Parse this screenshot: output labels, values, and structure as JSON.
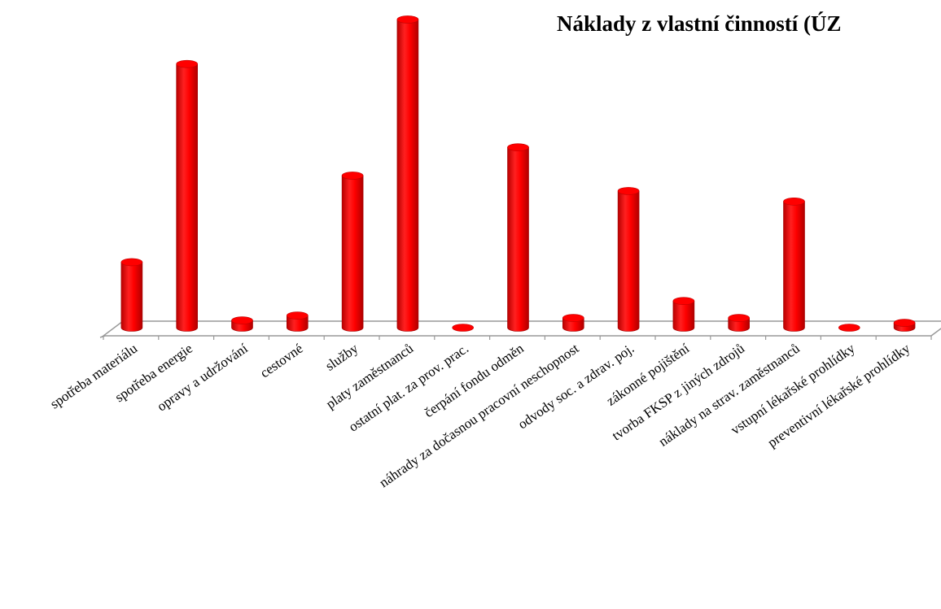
{
  "chart_data": {
    "type": "bar",
    "title": "Náklady z vlastní činností (ÚZ",
    "categories": [
      "spotřeba materiálu",
      "spotřeba energie",
      "opravy a udržování",
      "cestovné",
      "služby",
      "platy zaměstnanců",
      "ostatní plat. za prov. prac.",
      "čerpání fondu odměn",
      "náhrady za dočasnou pracovní neschopnost",
      "odvody soc. a zdrav. poj.",
      "zákonné pojištění",
      "tvorba FKSP z jiných zdrojů",
      "náklady na strav. zaměstnanců",
      "vstupní lékařské prohlídky",
      "preventivní lékařské prohlídky"
    ],
    "values": [
      81,
      326,
      9,
      15,
      188,
      381,
      0,
      223,
      12,
      169,
      33,
      12,
      156,
      0,
      6
    ],
    "ylim": [
      0,
      385
    ],
    "grid": false,
    "legend": "none",
    "colors": {
      "bar": "#ff0000",
      "bar_dark": "#b80000",
      "bar_light": "#ff5a5a",
      "floor": "#999999"
    }
  }
}
